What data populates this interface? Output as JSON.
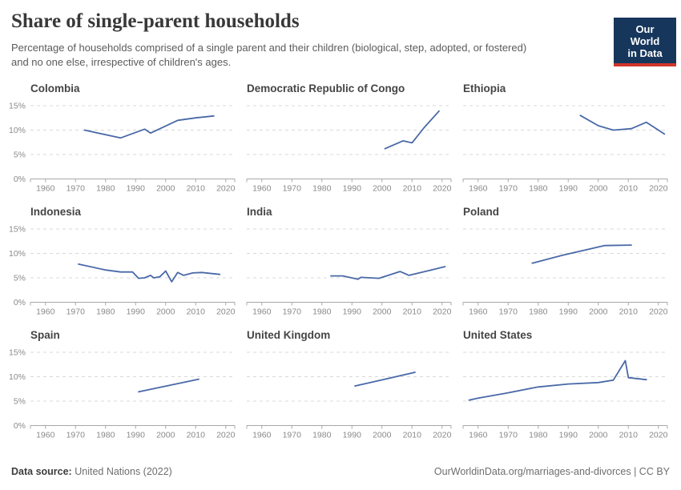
{
  "header": {
    "title": "Share of single-parent households",
    "subtitle_line1": "Percentage of households comprised of a single parent and their children (biological, step, adopted, or fostered)",
    "subtitle_line2": "and no one else, irrespective of children's ages.",
    "logo": {
      "line1": "Our World",
      "line2": "in Data",
      "bg_color": "#16365c",
      "accent_color": "#d0352b"
    }
  },
  "footer": {
    "source_label": "Data source:",
    "source_value": "United Nations (2022)",
    "right_text": "OurWorldinData.org/marriages-and-divorces | CC BY"
  },
  "chart_data": {
    "type": "line",
    "layout": "small-multiples-3x3",
    "x_domain": [
      1955,
      2023
    ],
    "x_ticks": [
      1960,
      1970,
      1980,
      1990,
      2000,
      2010,
      2020
    ],
    "y_ticks": [
      0,
      5,
      10,
      15
    ],
    "y_tick_suffix": "%",
    "ylim": [
      0,
      15
    ],
    "grid": true,
    "line_color": "#4969a7",
    "gridline_color": "#d9d9d9",
    "axis_color": "#a8a8a8",
    "facets": [
      {
        "title": "Colombia",
        "points": [
          [
            1973,
            10.0
          ],
          [
            1985,
            8.4
          ],
          [
            1993,
            10.2
          ],
          [
            1995,
            9.4
          ],
          [
            2004,
            12.0
          ],
          [
            2010,
            12.5
          ],
          [
            2016,
            12.9
          ]
        ]
      },
      {
        "title": "Democratic Republic of Congo",
        "points": [
          [
            2001,
            6.2
          ],
          [
            2007,
            7.8
          ],
          [
            2010,
            7.4
          ],
          [
            2014,
            10.5
          ],
          [
            2019,
            13.9
          ]
        ]
      },
      {
        "title": "Ethiopia",
        "points": [
          [
            1994,
            13.0
          ],
          [
            2000,
            10.9
          ],
          [
            2005,
            10.0
          ],
          [
            2011,
            10.3
          ],
          [
            2016,
            11.6
          ],
          [
            2022,
            9.2
          ]
        ]
      },
      {
        "title": "Indonesia",
        "points": [
          [
            1971,
            7.8
          ],
          [
            1980,
            6.6
          ],
          [
            1985,
            6.2
          ],
          [
            1989,
            6.2
          ],
          [
            1991,
            4.9
          ],
          [
            1993,
            5.0
          ],
          [
            1995,
            5.5
          ],
          [
            1996,
            5.0
          ],
          [
            1998,
            5.2
          ],
          [
            2000,
            6.4
          ],
          [
            2002,
            4.2
          ],
          [
            2004,
            6.1
          ],
          [
            2006,
            5.5
          ],
          [
            2009,
            6.0
          ],
          [
            2012,
            6.1
          ],
          [
            2018,
            5.7
          ]
        ]
      },
      {
        "title": "India",
        "points": [
          [
            1983,
            5.4
          ],
          [
            1987,
            5.4
          ],
          [
            1992,
            4.7
          ],
          [
            1993,
            5.1
          ],
          [
            1999,
            4.9
          ],
          [
            2006,
            6.3
          ],
          [
            2009,
            5.5
          ],
          [
            2015,
            6.4
          ],
          [
            2021,
            7.3
          ]
        ]
      },
      {
        "title": "Poland",
        "points": [
          [
            1978,
            8.0
          ],
          [
            1988,
            9.6
          ],
          [
            2002,
            11.6
          ],
          [
            2011,
            11.7
          ]
        ]
      },
      {
        "title": "Spain",
        "points": [
          [
            1991,
            6.9
          ],
          [
            2001,
            8.2
          ],
          [
            2011,
            9.5
          ]
        ]
      },
      {
        "title": "United Kingdom",
        "points": [
          [
            1991,
            8.1
          ],
          [
            2001,
            9.5
          ],
          [
            2011,
            10.9
          ]
        ]
      },
      {
        "title": "United States",
        "points": [
          [
            1957,
            5.2
          ],
          [
            1960,
            5.6
          ],
          [
            1970,
            6.7
          ],
          [
            1980,
            7.9
          ],
          [
            1990,
            8.5
          ],
          [
            2000,
            8.8
          ],
          [
            2005,
            9.3
          ],
          [
            2009,
            13.3
          ],
          [
            2010,
            9.8
          ],
          [
            2016,
            9.4
          ]
        ]
      }
    ]
  }
}
